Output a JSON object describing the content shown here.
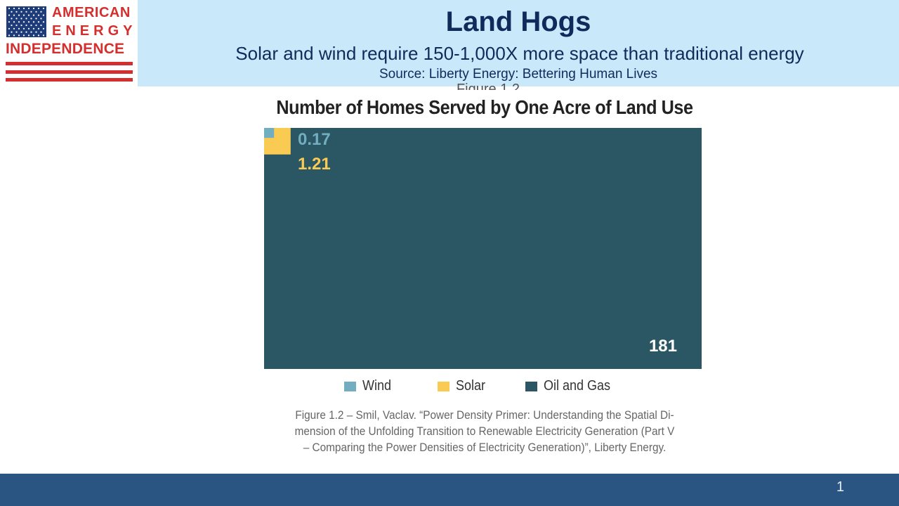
{
  "logo": {
    "line1": "AMERICAN",
    "line2": "ENERGY",
    "line3": "INDEPENDENCE",
    "icon": "american-flag-icon",
    "colors": {
      "text": "#d42f2f",
      "flag_blue": "#1f3c7a"
    }
  },
  "header": {
    "title": "Land Hogs",
    "subtitle": "Solar and wind require 150-1,000X more space than traditional energy",
    "source": "Source: Liberty Energy: Bettering Human Lives",
    "background": "#c9e8fa",
    "text_color": "#112a5c"
  },
  "figure": {
    "label": "Figure 1.2",
    "caption_lines": [
      "Figure 1.2 – Smil, Vaclav. “Power Density Primer: Understanding the Spatial Di-",
      "mension of the Unfolding Transition to Renewable Electricity Generation (Part V",
      "– Comparing the Power Densities of Electricity Generation)”, Liberty Energy."
    ]
  },
  "chart_data": {
    "type": "area",
    "title": "Number of Homes Served by One Acre of Land Use",
    "unit": "homes per acre",
    "categories": [
      "Wind",
      "Solar",
      "Oil and Gas"
    ],
    "values": [
      0.17,
      1.21,
      181
    ],
    "value_labels": [
      "0.17",
      "1.21",
      "181"
    ],
    "colors": [
      "#72aec0",
      "#f9cb52",
      "#2b5664"
    ],
    "legend": {
      "position": "bottom",
      "entries": [
        "Wind",
        "Solar",
        "Oil and Gas"
      ]
    },
    "grid": false
  },
  "footer": {
    "page_number": "1",
    "background": "#2a5583"
  }
}
